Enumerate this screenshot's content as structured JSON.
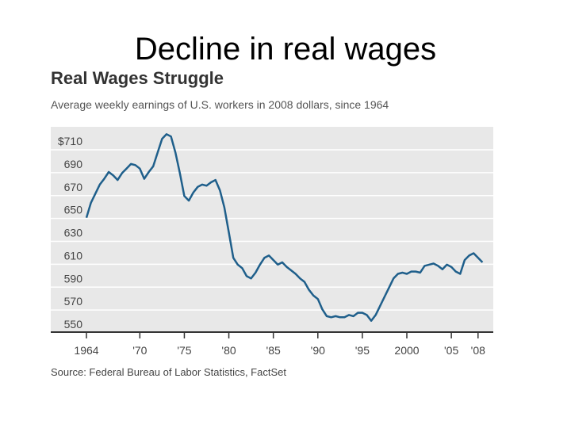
{
  "slide": {
    "title": "Decline in real wages"
  },
  "chart_data": {
    "type": "line",
    "title": "Real Wages Struggle",
    "subtitle": "Average weekly earnings of U.S. workers in 2008 dollars, since 1964",
    "source": "Source: Federal Bureau of Labor Statistics, FactSet",
    "xlabel": "",
    "ylabel": "",
    "xlim": [
      1964,
      2009
    ],
    "ylim": [
      546,
      722
    ],
    "grid": true,
    "y_ticks": [
      {
        "value": 710,
        "label": "$710"
      },
      {
        "value": 690,
        "label": "690"
      },
      {
        "value": 670,
        "label": "670"
      },
      {
        "value": 650,
        "label": "650"
      },
      {
        "value": 630,
        "label": "630"
      },
      {
        "value": 610,
        "label": "610"
      },
      {
        "value": 590,
        "label": "590"
      },
      {
        "value": 570,
        "label": "570"
      },
      {
        "value": 550,
        "label": "550"
      }
    ],
    "x_ticks": [
      {
        "value": 1964,
        "label": "1964"
      },
      {
        "value": 1970,
        "label": "'70"
      },
      {
        "value": 1975,
        "label": "'75"
      },
      {
        "value": 1980,
        "label": "'80"
      },
      {
        "value": 1985,
        "label": "'85"
      },
      {
        "value": 1990,
        "label": "'90"
      },
      {
        "value": 1995,
        "label": "'95"
      },
      {
        "value": 2000,
        "label": "2000"
      },
      {
        "value": 2005,
        "label": "'05"
      },
      {
        "value": 2008,
        "label": "'08"
      }
    ],
    "series": [
      {
        "color": "#1f5f8b",
        "points": [
          [
            1964.0,
            643
          ],
          [
            1964.5,
            656
          ],
          [
            1965.0,
            664
          ],
          [
            1965.5,
            672
          ],
          [
            1966.0,
            677
          ],
          [
            1966.5,
            683
          ],
          [
            1967.0,
            680
          ],
          [
            1967.5,
            676
          ],
          [
            1968.0,
            682
          ],
          [
            1968.5,
            686
          ],
          [
            1969.0,
            690
          ],
          [
            1969.5,
            689
          ],
          [
            1970.0,
            686
          ],
          [
            1970.5,
            677
          ],
          [
            1971.0,
            683
          ],
          [
            1971.5,
            688
          ],
          [
            1972.0,
            700
          ],
          [
            1972.5,
            712
          ],
          [
            1973.0,
            716
          ],
          [
            1973.5,
            714
          ],
          [
            1974.0,
            700
          ],
          [
            1974.5,
            682
          ],
          [
            1975.0,
            662
          ],
          [
            1975.5,
            658
          ],
          [
            1976.0,
            665
          ],
          [
            1976.5,
            670
          ],
          [
            1977.0,
            672
          ],
          [
            1977.5,
            671
          ],
          [
            1978.0,
            674
          ],
          [
            1978.5,
            676
          ],
          [
            1979.0,
            667
          ],
          [
            1979.5,
            652
          ],
          [
            1980.0,
            630
          ],
          [
            1980.5,
            608
          ],
          [
            1981.0,
            602
          ],
          [
            1981.5,
            599
          ],
          [
            1982.0,
            592
          ],
          [
            1982.5,
            590
          ],
          [
            1983.0,
            595
          ],
          [
            1983.5,
            602
          ],
          [
            1984.0,
            608
          ],
          [
            1984.5,
            610
          ],
          [
            1985.0,
            606
          ],
          [
            1985.5,
            602
          ],
          [
            1986.0,
            604
          ],
          [
            1986.5,
            600
          ],
          [
            1987.0,
            597
          ],
          [
            1987.5,
            594
          ],
          [
            1988.0,
            590
          ],
          [
            1988.5,
            587
          ],
          [
            1989.0,
            580
          ],
          [
            1989.5,
            575
          ],
          [
            1990.0,
            572
          ],
          [
            1990.5,
            563
          ],
          [
            1991.0,
            557
          ],
          [
            1991.5,
            556
          ],
          [
            1992.0,
            557
          ],
          [
            1992.5,
            556
          ],
          [
            1993.0,
            556
          ],
          [
            1993.5,
            558
          ],
          [
            1994.0,
            557
          ],
          [
            1994.5,
            560
          ],
          [
            1995.0,
            560
          ],
          [
            1995.5,
            558
          ],
          [
            1996.0,
            553
          ],
          [
            1996.5,
            558
          ],
          [
            1997.0,
            566
          ],
          [
            1997.5,
            574
          ],
          [
            1998.0,
            582
          ],
          [
            1998.5,
            590
          ],
          [
            1999.0,
            594
          ],
          [
            1999.5,
            595
          ],
          [
            2000.0,
            594
          ],
          [
            2000.5,
            596
          ],
          [
            2001.0,
            596
          ],
          [
            2001.5,
            595
          ],
          [
            2002.0,
            601
          ],
          [
            2002.5,
            602
          ],
          [
            2003.0,
            603
          ],
          [
            2003.5,
            601
          ],
          [
            2004.0,
            598
          ],
          [
            2004.5,
            602
          ],
          [
            2005.0,
            600
          ],
          [
            2005.5,
            596
          ],
          [
            2006.0,
            594
          ],
          [
            2006.5,
            606
          ],
          [
            2007.0,
            610
          ],
          [
            2007.5,
            612
          ],
          [
            2008.0,
            608
          ],
          [
            2008.5,
            604
          ]
        ]
      }
    ]
  }
}
